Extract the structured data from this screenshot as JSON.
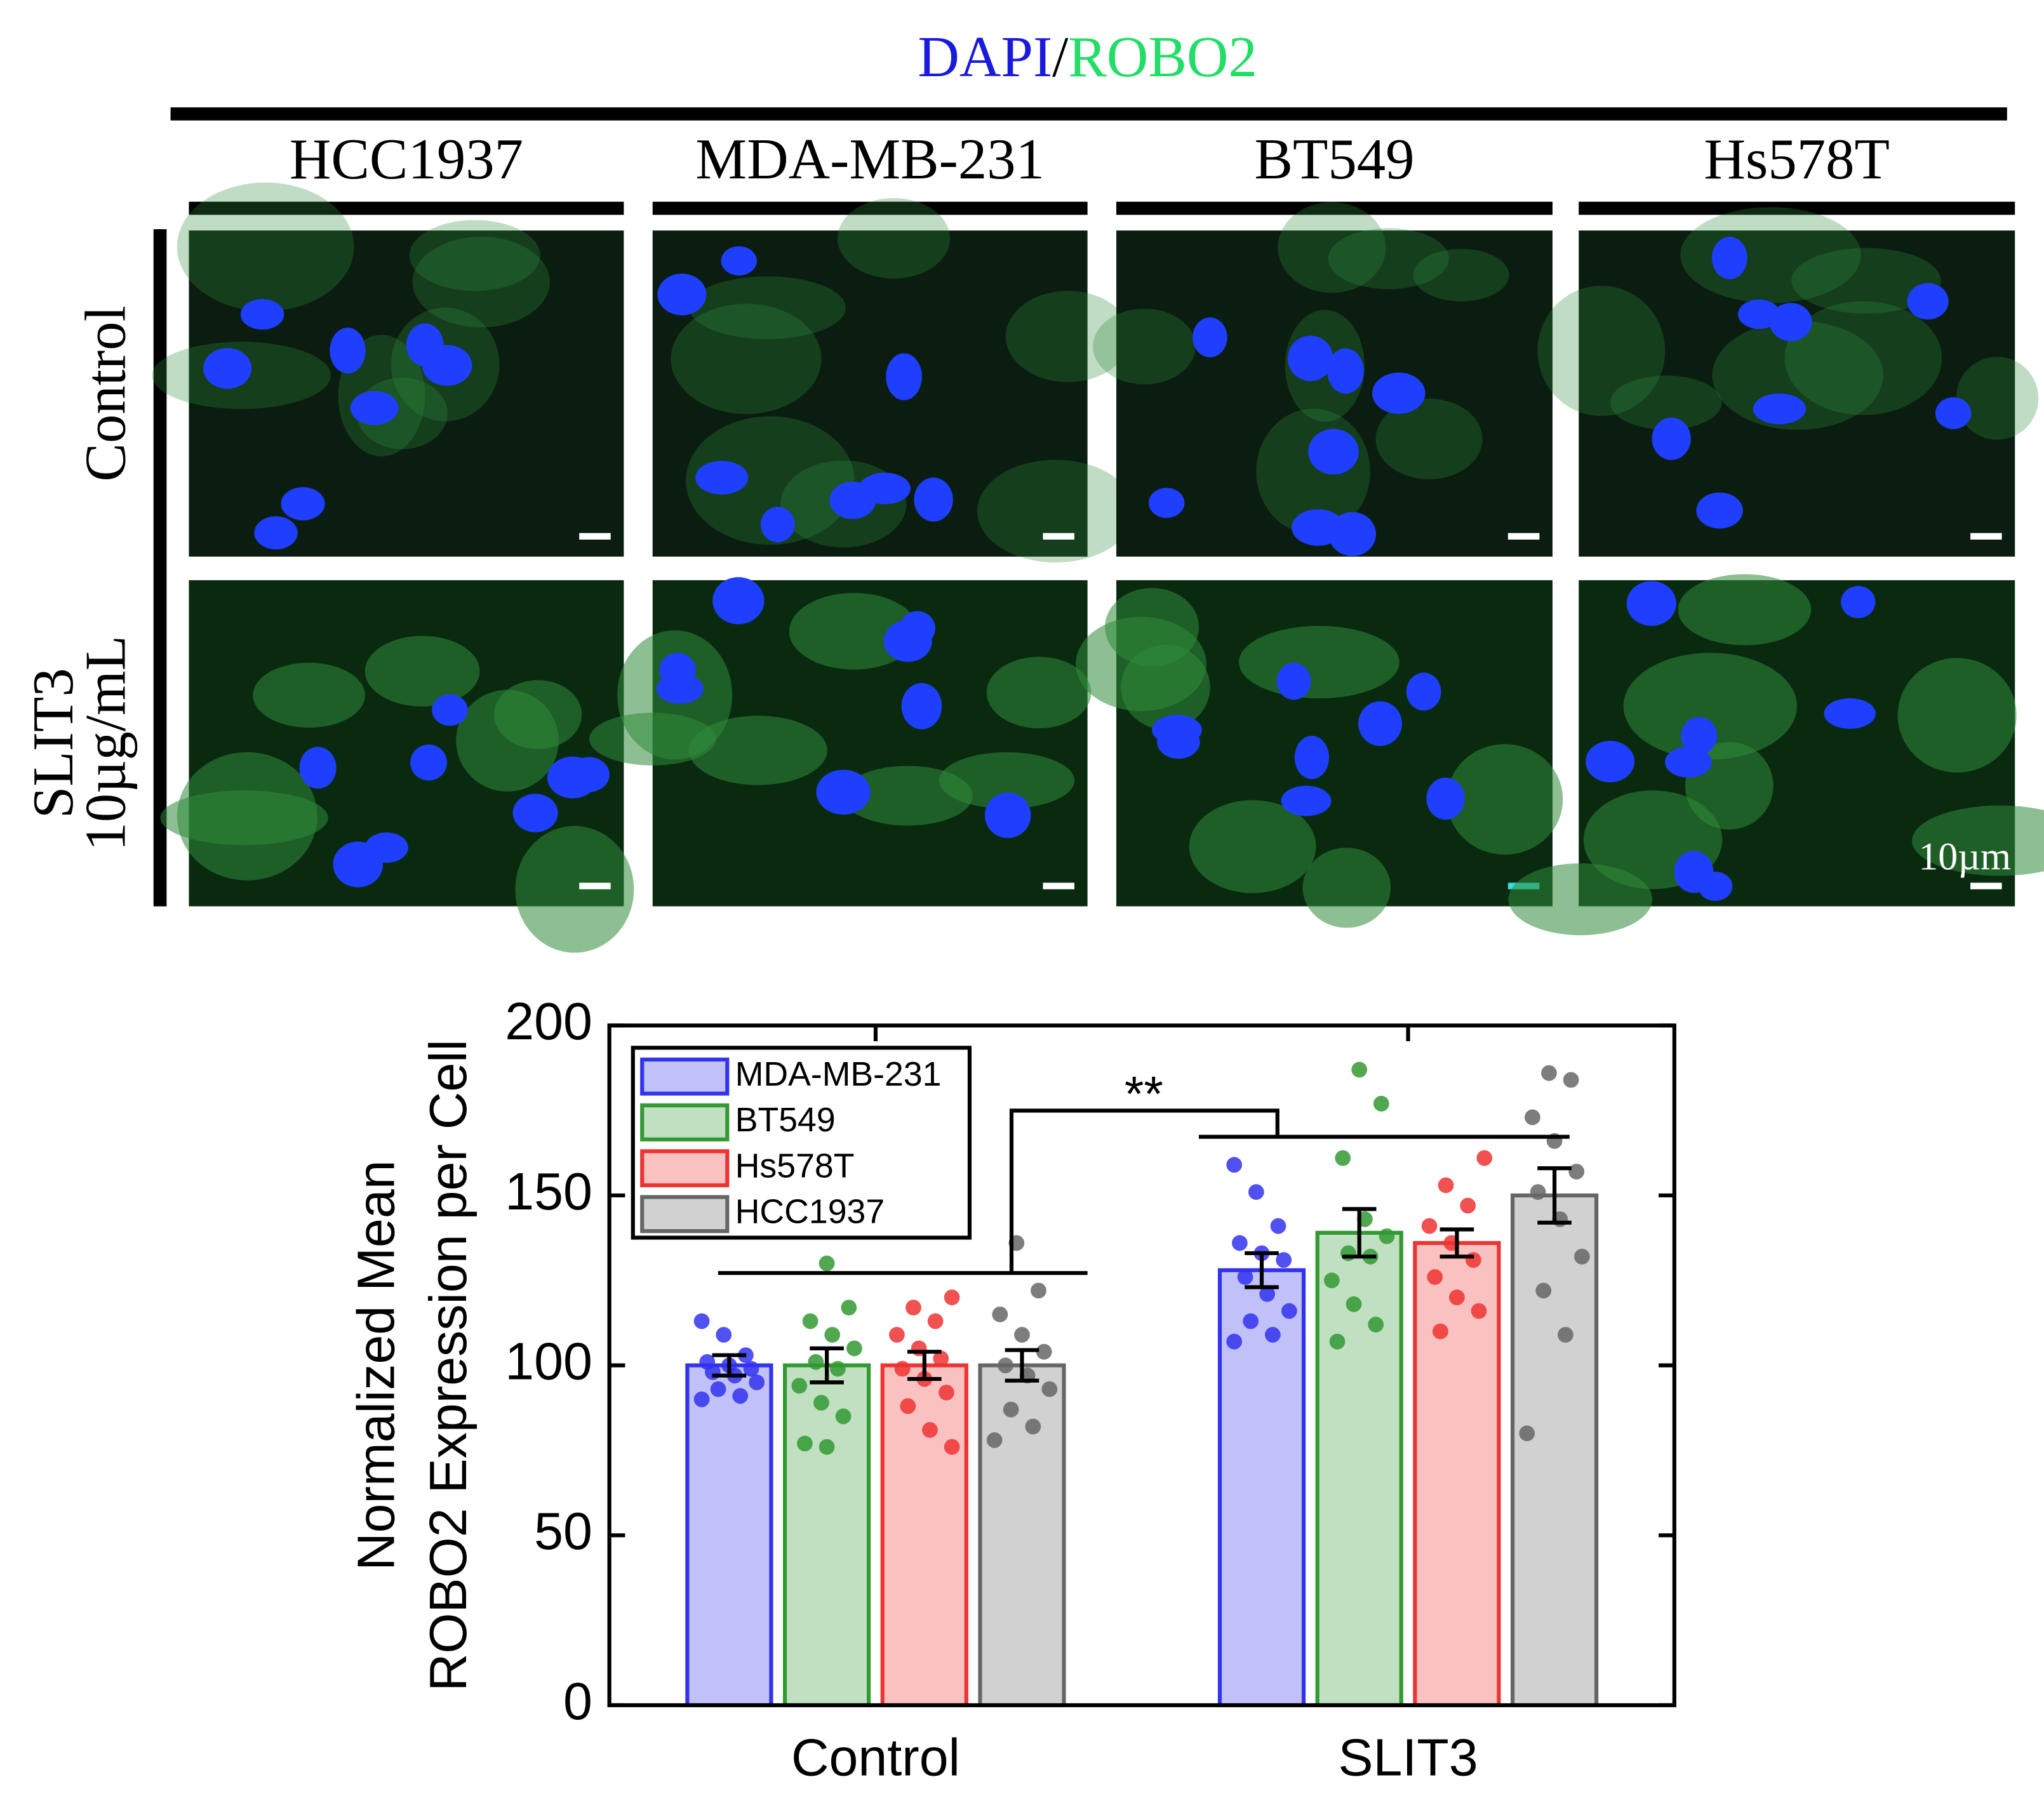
{
  "figure": {
    "title_parts": [
      "DAPI",
      "/",
      "ROBO2"
    ],
    "columns": [
      "HCC1937",
      "MDA-MB-231",
      "BT549",
      "Hs578T"
    ],
    "rows": [
      [
        "Control"
      ],
      [
        "SLIT3",
        "10µg/mL"
      ]
    ],
    "scale_bar": "10µm"
  },
  "chart_data": {
    "type": "bar",
    "ylabel": [
      "Normalized Mean",
      "ROBO2 Expression per Cell"
    ],
    "categories": [
      "Control",
      "SLIT3"
    ],
    "ylim": [
      0,
      200
    ],
    "yticks": [
      0,
      50,
      100,
      150,
      200
    ],
    "legend": "upper left",
    "annotation": "**",
    "series": [
      {
        "name": "MDA-MB-231",
        "color": "#3333ee",
        "values": [
          100,
          128
        ],
        "errors": [
          3,
          5
        ],
        "points": [
          [
            113,
            109,
            103,
            101,
            100,
            99,
            98,
            97,
            95,
            93,
            91,
            90
          ],
          [
            159,
            151,
            141,
            136,
            133,
            131,
            126,
            121,
            116,
            113,
            109,
            107
          ]
        ]
      },
      {
        "name": "BT549",
        "color": "#339933",
        "values": [
          100,
          139
        ],
        "errors": [
          5,
          7
        ],
        "points": [
          [
            130,
            117,
            113,
            109,
            105,
            101,
            99,
            94,
            89,
            85,
            77,
            76
          ],
          [
            187,
            177,
            161,
            143,
            138,
            133,
            132,
            125,
            118,
            112,
            107
          ]
        ]
      },
      {
        "name": "Hs578T",
        "color": "#ee3333",
        "values": [
          100,
          136
        ],
        "errors": [
          4,
          4
        ],
        "points": [
          [
            120,
            117,
            113,
            109,
            105,
            102,
            99,
            96,
            92,
            88,
            81,
            76
          ],
          [
            161,
            153,
            147,
            141,
            136,
            131,
            126,
            120,
            116,
            110
          ]
        ]
      },
      {
        "name": "HCC1937",
        "color": "#666666",
        "values": [
          100,
          150
        ],
        "errors": [
          4.5,
          8
        ],
        "points": [
          [
            136,
            122,
            115,
            109,
            104,
            100,
            97,
            93,
            87,
            82,
            78
          ],
          [
            186,
            184,
            173,
            166,
            157,
            151,
            143,
            132,
            122,
            109,
            80
          ]
        ]
      }
    ]
  }
}
